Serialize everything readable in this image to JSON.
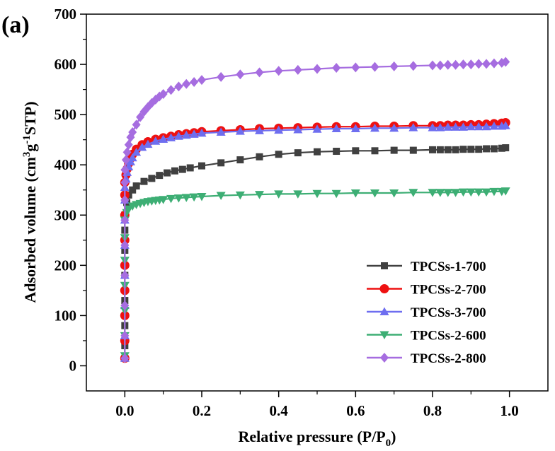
{
  "panel_label": "(a)",
  "chart_data": {
    "type": "line",
    "title": "",
    "xlabel": "Relative pressure (P/P0)",
    "xlabel_parts": {
      "main": "Relative pressure (P/P",
      "sub": "0",
      "end": ")"
    },
    "ylabel": "Adsorbed volume (cm3g-1STP)",
    "ylabel_parts": {
      "a": "Adsorbed volume (cm",
      "sup1": "3",
      "b": "g",
      "sup2": "-1",
      "c": "STP)"
    },
    "xlim": [
      -0.1,
      1.1
    ],
    "ylim": [
      -50,
      700
    ],
    "xticks": [
      0.0,
      0.2,
      0.4,
      0.6,
      0.8,
      1.0
    ],
    "xtick_labels": [
      "0.0",
      "0.2",
      "0.4",
      "0.6",
      "0.8",
      "1.0"
    ],
    "yticks": [
      0,
      100,
      200,
      300,
      400,
      500,
      600,
      700
    ],
    "ytick_labels": [
      "0",
      "100",
      "200",
      "300",
      "400",
      "500",
      "600",
      "700"
    ],
    "legend_position": "bottom-right",
    "series": [
      {
        "name": "TPCSs-1-700",
        "color": "#404040",
        "marker": "square",
        "x": [
          0.0,
          0.0,
          0.0,
          0.0,
          0.0,
          0.0,
          0.0,
          0.0,
          0.005,
          0.01,
          0.02,
          0.03,
          0.05,
          0.07,
          0.09,
          0.11,
          0.13,
          0.15,
          0.17,
          0.2,
          0.25,
          0.3,
          0.35,
          0.4,
          0.45,
          0.5,
          0.55,
          0.6,
          0.65,
          0.7,
          0.75,
          0.8,
          0.82,
          0.84,
          0.86,
          0.88,
          0.9,
          0.92,
          0.94,
          0.96,
          0.98,
          0.99
        ],
        "y": [
          15,
          40,
          80,
          130,
          180,
          230,
          270,
          300,
          325,
          340,
          350,
          358,
          367,
          373,
          379,
          384,
          388,
          391,
          394,
          398,
          404,
          410,
          416,
          421,
          424,
          426,
          427,
          428,
          428,
          429,
          429,
          430,
          430,
          430,
          430,
          431,
          431,
          431,
          432,
          432,
          433,
          434
        ]
      },
      {
        "name": "TPCSs-2-700",
        "color": "#ee1111",
        "marker": "circle",
        "x": [
          0.0,
          0.0,
          0.0,
          0.0,
          0.0,
          0.0,
          0.0,
          0.0,
          0.0,
          0.003,
          0.006,
          0.01,
          0.015,
          0.02,
          0.03,
          0.045,
          0.06,
          0.08,
          0.1,
          0.12,
          0.14,
          0.16,
          0.18,
          0.2,
          0.25,
          0.3,
          0.35,
          0.4,
          0.45,
          0.5,
          0.55,
          0.6,
          0.65,
          0.7,
          0.75,
          0.8,
          0.82,
          0.84,
          0.86,
          0.88,
          0.9,
          0.92,
          0.94,
          0.96,
          0.98,
          0.99
        ],
        "y": [
          15,
          50,
          100,
          150,
          200,
          250,
          300,
          340,
          365,
          380,
          392,
          403,
          413,
          421,
          431,
          440,
          446,
          451,
          454,
          457,
          460,
          462,
          464,
          466,
          468,
          470,
          472,
          473,
          474,
          475,
          476,
          476,
          477,
          477,
          478,
          478,
          478,
          479,
          479,
          479,
          480,
          480,
          481,
          482,
          483,
          484
        ]
      },
      {
        "name": "TPCSs-3-700",
        "color": "#6e6ef0",
        "marker": "triangle-up",
        "x": [
          0.0,
          0.0,
          0.0,
          0.0,
          0.0,
          0.0,
          0.0,
          0.0,
          0.003,
          0.006,
          0.01,
          0.015,
          0.02,
          0.03,
          0.045,
          0.06,
          0.08,
          0.1,
          0.12,
          0.14,
          0.16,
          0.18,
          0.2,
          0.25,
          0.3,
          0.35,
          0.4,
          0.45,
          0.5,
          0.55,
          0.6,
          0.65,
          0.7,
          0.75,
          0.8,
          0.82,
          0.84,
          0.86,
          0.88,
          0.9,
          0.92,
          0.94,
          0.96,
          0.98,
          0.99
        ],
        "y": [
          15,
          60,
          120,
          180,
          240,
          290,
          330,
          355,
          372,
          385,
          396,
          406,
          414,
          425,
          435,
          441,
          447,
          451,
          454,
          457,
          459,
          461,
          463,
          465,
          467,
          468,
          469,
          470,
          471,
          472,
          472,
          473,
          473,
          474,
          474,
          474,
          475,
          475,
          475,
          476,
          476,
          476,
          477,
          477,
          478
        ]
      },
      {
        "name": "TPCSs-2-600",
        "color": "#3dae74",
        "marker": "triangle-down",
        "x": [
          0.0,
          0.0,
          0.0,
          0.0,
          0.0,
          0.0,
          0.0,
          0.005,
          0.01,
          0.02,
          0.03,
          0.04,
          0.05,
          0.06,
          0.07,
          0.08,
          0.09,
          0.1,
          0.12,
          0.14,
          0.16,
          0.18,
          0.2,
          0.25,
          0.3,
          0.35,
          0.4,
          0.45,
          0.5,
          0.55,
          0.6,
          0.65,
          0.7,
          0.75,
          0.8,
          0.82,
          0.84,
          0.86,
          0.88,
          0.9,
          0.92,
          0.94,
          0.96,
          0.98,
          0.99
        ],
        "y": [
          20,
          60,
          110,
          160,
          210,
          255,
          290,
          305,
          312,
          318,
          321,
          323,
          325,
          327,
          328,
          329,
          330,
          331,
          333,
          334,
          335,
          336,
          337,
          339,
          340,
          341,
          342,
          342,
          343,
          343,
          344,
          344,
          344,
          345,
          345,
          345,
          345,
          345,
          346,
          346,
          346,
          346,
          347,
          347,
          348
        ]
      },
      {
        "name": "TPCSs-2-800",
        "color": "#a66de0",
        "marker": "diamond",
        "x": [
          0.0,
          0.0,
          0.0,
          0.0,
          0.0,
          0.0,
          0.0,
          0.0,
          0.0,
          0.003,
          0.006,
          0.01,
          0.015,
          0.02,
          0.03,
          0.04,
          0.05,
          0.06,
          0.07,
          0.08,
          0.09,
          0.1,
          0.12,
          0.14,
          0.16,
          0.18,
          0.2,
          0.25,
          0.3,
          0.35,
          0.4,
          0.45,
          0.5,
          0.55,
          0.6,
          0.65,
          0.7,
          0.75,
          0.8,
          0.82,
          0.84,
          0.86,
          0.88,
          0.9,
          0.92,
          0.94,
          0.96,
          0.98,
          0.99
        ],
        "y": [
          15,
          60,
          120,
          180,
          240,
          290,
          330,
          365,
          390,
          410,
          425,
          440,
          455,
          465,
          480,
          495,
          506,
          515,
          523,
          530,
          536,
          541,
          549,
          556,
          561,
          565,
          569,
          575,
          580,
          584,
          587,
          589,
          591,
          593,
          594,
          595,
          596,
          597,
          598,
          598,
          599,
          599,
          600,
          600,
          601,
          601,
          602,
          603,
          605
        ]
      }
    ]
  }
}
